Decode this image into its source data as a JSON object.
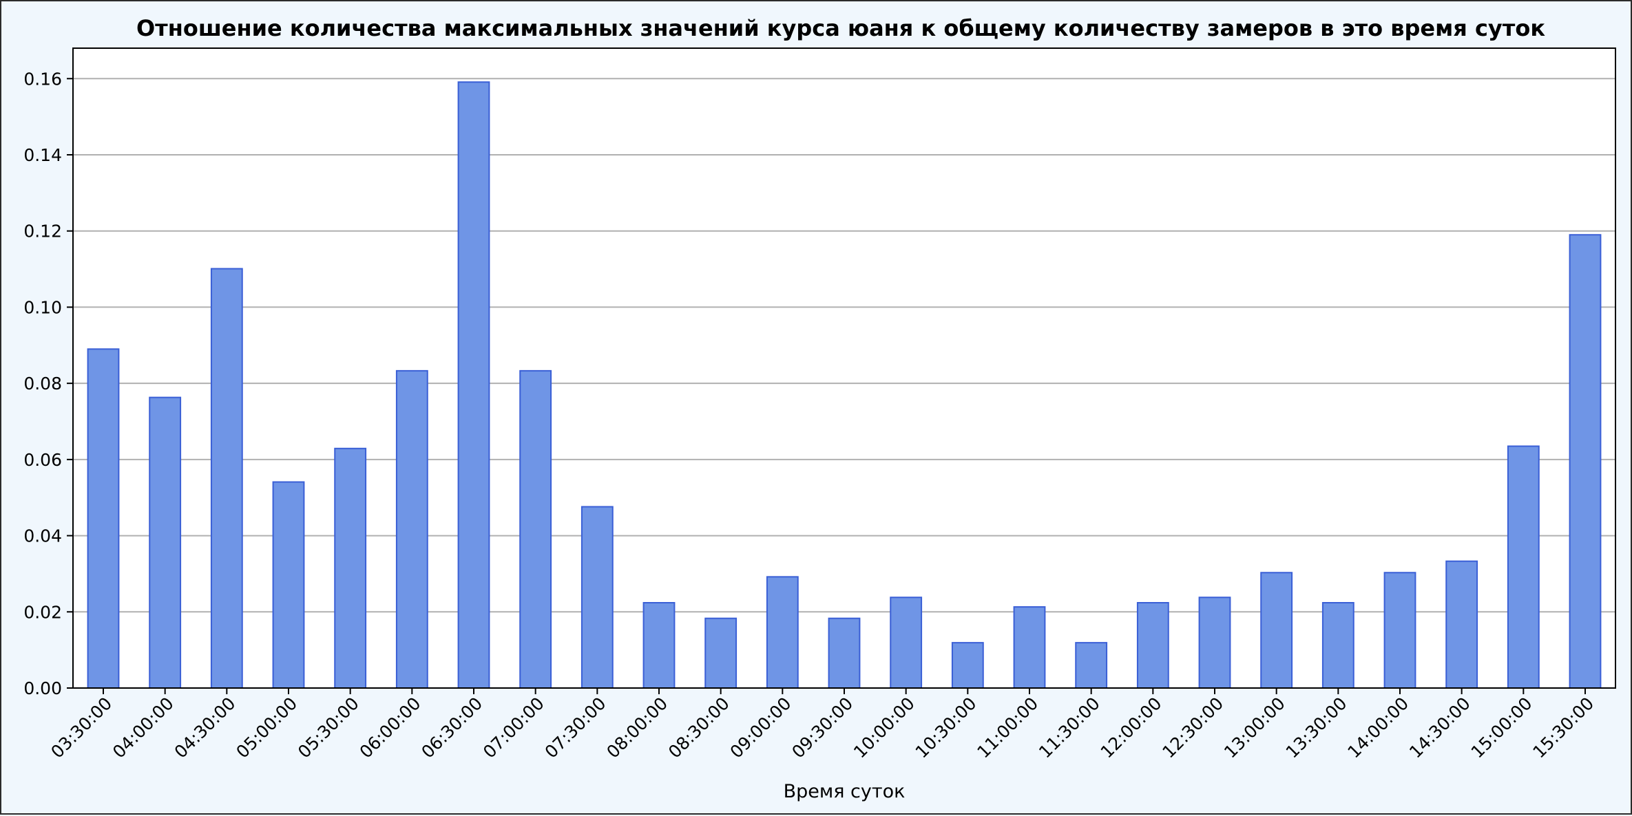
{
  "chart_data": {
    "type": "bar",
    "title": "Отношение количества максимальных значений курса юаня к общему количеству замеров в это время суток",
    "xlabel": "Время суток",
    "ylabel": "",
    "ylim": [
      0,
      0.168
    ],
    "yticks": [
      "0.00",
      "0.02",
      "0.04",
      "0.06",
      "0.08",
      "0.10",
      "0.12",
      "0.14",
      "0.16"
    ],
    "grid": "horizontal",
    "bar_color": "#6f95e6",
    "bar_edge_color": "#3a5fd6",
    "categories": [
      "03:30:00",
      "04:00:00",
      "04:30:00",
      "05:00:00",
      "05:30:00",
      "06:00:00",
      "06:30:00",
      "07:00:00",
      "07:30:00",
      "08:00:00",
      "08:30:00",
      "09:00:00",
      "09:30:00",
      "10:00:00",
      "10:30:00",
      "11:00:00",
      "11:30:00",
      "12:00:00",
      "12:30:00",
      "13:00:00",
      "13:30:00",
      "14:00:00",
      "14:30:00",
      "15:00:00",
      "15:30:00"
    ],
    "values": [
      0.089,
      0.0763,
      0.1101,
      0.0541,
      0.0629,
      0.0833,
      0.1591,
      0.0833,
      0.0476,
      0.0224,
      0.0183,
      0.0292,
      0.0183,
      0.0238,
      0.0119,
      0.0213,
      0.0119,
      0.0224,
      0.0238,
      0.0303,
      0.0224,
      0.0303,
      0.0333,
      0.0635,
      0.119
    ]
  }
}
